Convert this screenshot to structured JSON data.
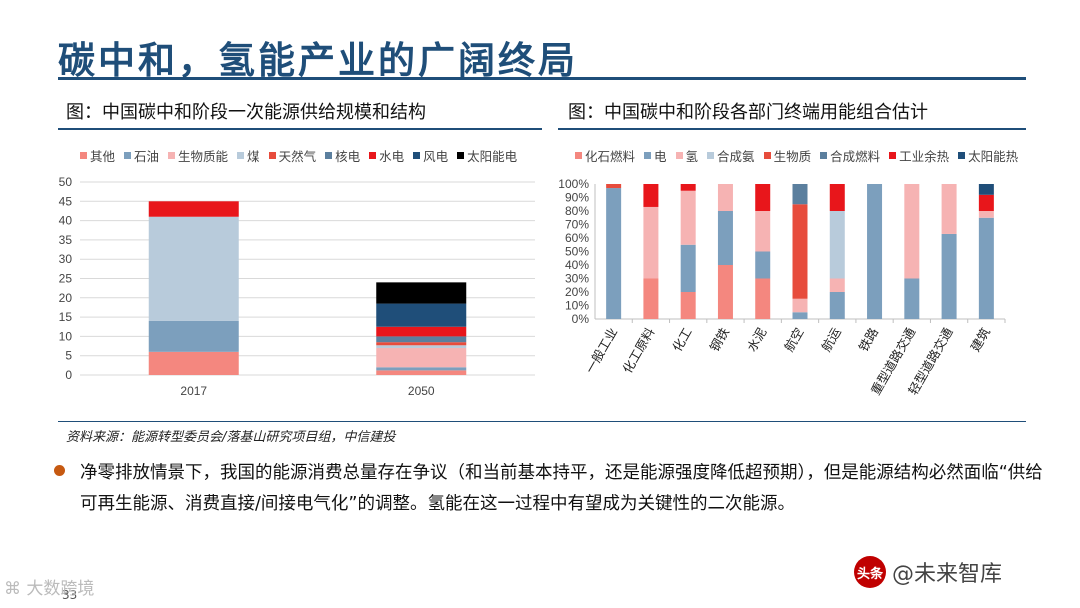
{
  "slide": {
    "title": "碳中和，氢能产业的广阔终局",
    "source": "资料来源：能源转型委员会/落基山研究项目组，中信建投",
    "bullet": "净零排放情景下，我国的能源消费总量存在争议（和当前基本持平，还是能源强度降低超预期），但是能源结构必然面临“供给可再生能源、消费直接/间接电气化”的调整。氢能在这一过程中有望成为关键性的二次能源。",
    "page_number": "33",
    "watermark_left": "大数跨境",
    "watermark_logo": "头条",
    "watermark_right": "@未来智库",
    "accent_color": "#1f4e79",
    "bullet_color": "#c65911"
  },
  "left_chart": {
    "figure_title": "图：中国碳中和阶段一次能源供给规模和结构"
  },
  "right_chart": {
    "figure_title": "图：中国碳中和阶段各部门终端用能组合估计"
  },
  "chart_data": [
    {
      "type": "bar",
      "stacked": true,
      "title": "图：中国碳中和阶段一次能源供给规模和结构",
      "categories": [
        "2017",
        "2050"
      ],
      "ylim": [
        0,
        50
      ],
      "yticks": [
        0,
        5,
        10,
        15,
        20,
        25,
        30,
        35,
        40,
        45,
        50
      ],
      "legend": "top",
      "grid": true,
      "series": [
        {
          "name": "其他",
          "color": "#f4877f",
          "values": [
            6,
            1.2
          ]
        },
        {
          "name": "石油",
          "color": "#7c9fbd",
          "values": [
            8,
            0.8
          ]
        },
        {
          "name": "生物质能",
          "color": "#f6b3b3",
          "values": [
            0,
            5
          ]
        },
        {
          "name": "煤",
          "color": "#b8cbdb",
          "values": [
            27,
            0.7
          ]
        },
        {
          "name": "天然气",
          "color": "#e74c3c",
          "values": [
            0,
            0.8
          ]
        },
        {
          "name": "核电",
          "color": "#5b7f9e",
          "values": [
            0,
            1.5
          ]
        },
        {
          "name": "水电",
          "color": "#e8161b",
          "values": [
            4,
            2.5
          ]
        },
        {
          "name": "风电",
          "color": "#1f4e79",
          "values": [
            0,
            6
          ]
        },
        {
          "name": "太阳能电",
          "color": "#000000",
          "values": [
            0,
            5.5
          ]
        }
      ]
    },
    {
      "type": "bar",
      "stacked": true,
      "percent": true,
      "title": "图：中国碳中和阶段各部门终端用能组合估计",
      "categories": [
        "一般工业",
        "化工原料",
        "化工",
        "钢铁",
        "水泥",
        "航空",
        "航运",
        "铁路",
        "重型道路交通",
        "轻型道路交通",
        "建筑"
      ],
      "ylim": [
        0,
        100
      ],
      "yticks": [
        "0%",
        "10%",
        "20%",
        "30%",
        "40%",
        "50%",
        "60%",
        "70%",
        "80%",
        "90%",
        "100%"
      ],
      "legend": "top",
      "grid": false,
      "series": [
        {
          "name": "化石燃料",
          "color": "#f4877f",
          "values": [
            0,
            30,
            20,
            40,
            30,
            0,
            0,
            0,
            0,
            0,
            0
          ]
        },
        {
          "name": "电",
          "color": "#7c9fbd",
          "values": [
            97,
            0,
            35,
            40,
            20,
            5,
            20,
            100,
            30,
            63,
            75
          ]
        },
        {
          "name": "氢",
          "color": "#f6b3b3",
          "values": [
            0,
            53,
            40,
            20,
            30,
            10,
            10,
            0,
            70,
            37,
            5
          ]
        },
        {
          "name": "合成氨",
          "color": "#b8cbdb",
          "values": [
            0,
            0,
            0,
            0,
            0,
            0,
            50,
            0,
            0,
            0,
            0
          ]
        },
        {
          "name": "生物质",
          "color": "#e74c3c",
          "values": [
            3,
            0,
            0,
            0,
            0,
            70,
            0,
            0,
            0,
            0,
            0
          ]
        },
        {
          "name": "合成燃料",
          "color": "#5b7f9e",
          "values": [
            0,
            0,
            0,
            0,
            0,
            15,
            0,
            0,
            0,
            0,
            0
          ]
        },
        {
          "name": "工业余热",
          "color": "#e8161b",
          "values": [
            0,
            17,
            5,
            0,
            20,
            0,
            20,
            0,
            0,
            0,
            12
          ]
        },
        {
          "name": "太阳能热",
          "color": "#1f4e79",
          "values": [
            0,
            0,
            0,
            0,
            0,
            0,
            0,
            0,
            0,
            0,
            8
          ]
        }
      ]
    }
  ]
}
